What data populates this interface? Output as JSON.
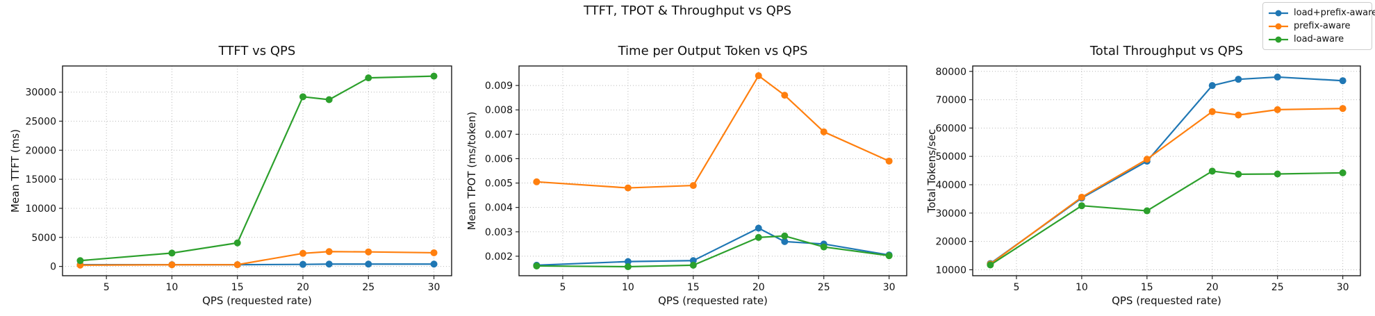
{
  "figure": {
    "title": "TTFT, TPOT & Throughput vs QPS",
    "background": "#ffffff"
  },
  "legend": {
    "position": "top-right",
    "entries": [
      {
        "label": "load+prefix-aware",
        "color": "#1f77b4"
      },
      {
        "label": "prefix-aware",
        "color": "#ff7f0e"
      },
      {
        "label": "load-aware",
        "color": "#2ca02c"
      }
    ]
  },
  "chart_data": [
    {
      "type": "line",
      "title": "TTFT vs QPS",
      "xlabel": "QPS (requested rate)",
      "ylabel": "Mean TTFT (ms)",
      "grid": true,
      "x": [
        3,
        10,
        15,
        20,
        22,
        25,
        30
      ],
      "xticks": [
        5,
        10,
        15,
        20,
        25,
        30
      ],
      "xtick_labels": [
        "5",
        "10",
        "15",
        "20",
        "25",
        "30"
      ],
      "yticks": [
        0,
        5000,
        10000,
        15000,
        20000,
        25000,
        30000
      ],
      "ytick_labels": [
        "0",
        "5000",
        "10000",
        "15000",
        "20000",
        "25000",
        "30000"
      ],
      "xlim": [
        1.65,
        31.35
      ],
      "ylim": [
        -1600,
        34500
      ],
      "series": [
        {
          "name": "load+prefix-aware",
          "color": "#1f77b4",
          "values": [
            300,
            300,
            300,
            350,
            400,
            400,
            400
          ]
        },
        {
          "name": "prefix-aware",
          "color": "#ff7f0e",
          "values": [
            220,
            280,
            300,
            2250,
            2550,
            2500,
            2350
          ]
        },
        {
          "name": "load-aware",
          "color": "#2ca02c",
          "values": [
            1000,
            2300,
            4050,
            29200,
            28700,
            32450,
            32750
          ]
        }
      ]
    },
    {
      "type": "line",
      "title": "Time per Output Token vs QPS",
      "xlabel": "QPS (requested rate)",
      "ylabel": "Mean TPOT (ms/token)",
      "grid": true,
      "x": [
        3,
        10,
        15,
        20,
        22,
        25,
        30
      ],
      "xticks": [
        5,
        10,
        15,
        20,
        25,
        30
      ],
      "xtick_labels": [
        "5",
        "10",
        "15",
        "20",
        "25",
        "30"
      ],
      "yticks": [
        0.002,
        0.003,
        0.004,
        0.005,
        0.006,
        0.007,
        0.008,
        0.009
      ],
      "ytick_labels": [
        "0.002",
        "0.003",
        "0.004",
        "0.005",
        "0.006",
        "0.007",
        "0.008",
        "0.009"
      ],
      "xlim": [
        1.65,
        31.35
      ],
      "ylim": [
        0.0012,
        0.0098
      ],
      "series": [
        {
          "name": "load+prefix-aware",
          "color": "#1f77b4",
          "values": [
            0.00163,
            0.00178,
            0.00182,
            0.00315,
            0.0026,
            0.0025,
            0.00205
          ]
        },
        {
          "name": "prefix-aware",
          "color": "#ff7f0e",
          "values": [
            0.00505,
            0.0048,
            0.0049,
            0.0094,
            0.0086,
            0.0071,
            0.0059
          ]
        },
        {
          "name": "load-aware",
          "color": "#2ca02c",
          "values": [
            0.0016,
            0.00157,
            0.00163,
            0.00277,
            0.00283,
            0.00238,
            0.00202
          ]
        }
      ]
    },
    {
      "type": "line",
      "title": "Total Throughput vs QPS",
      "xlabel": "QPS (requested rate)",
      "ylabel": "Total Tokens/sec",
      "grid": true,
      "x": [
        3,
        10,
        15,
        20,
        22,
        25,
        30
      ],
      "xticks": [
        5,
        10,
        15,
        20,
        25,
        30
      ],
      "xtick_labels": [
        "5",
        "10",
        "15",
        "20",
        "25",
        "30"
      ],
      "yticks": [
        10000,
        20000,
        30000,
        40000,
        50000,
        60000,
        70000,
        80000
      ],
      "ytick_labels": [
        "10000",
        "20000",
        "30000",
        "40000",
        "50000",
        "60000",
        "70000",
        "80000"
      ],
      "xlim": [
        1.65,
        31.35
      ],
      "ylim": [
        7900,
        81900
      ],
      "series": [
        {
          "name": "load+prefix-aware",
          "color": "#1f77b4",
          "values": [
            12200,
            35300,
            48300,
            75000,
            77200,
            78000,
            76700
          ]
        },
        {
          "name": "prefix-aware",
          "color": "#ff7f0e",
          "values": [
            12000,
            35600,
            49000,
            65800,
            64600,
            66500,
            66900
          ]
        },
        {
          "name": "load-aware",
          "color": "#2ca02c",
          "values": [
            11700,
            32600,
            30800,
            44800,
            43700,
            43800,
            44200
          ]
        }
      ]
    }
  ]
}
